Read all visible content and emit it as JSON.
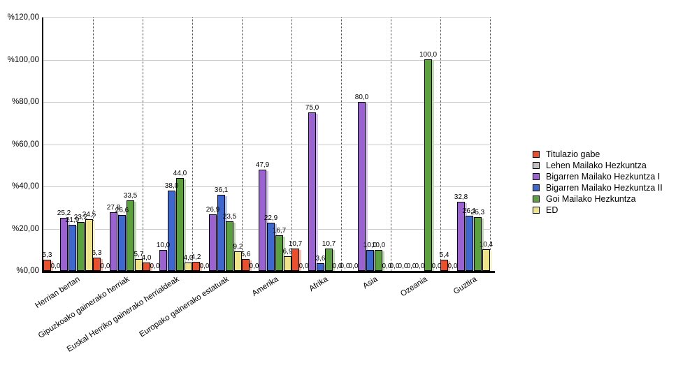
{
  "chart_data": {
    "type": "bar",
    "title": "",
    "xlabel": "",
    "ylabel": "",
    "ylim": [
      0,
      120
    ],
    "grid": "horizontal-solid-gray, vertical-dotted-category-separators",
    "legend_position": "right",
    "decimal_separator": ",",
    "yticks": {
      "values": [
        0,
        20,
        40,
        60,
        80,
        100,
        120
      ],
      "labels": [
        "%0,00",
        "%20,00",
        "%40,00",
        "%60,00",
        "%80,00",
        "%100,00",
        "%120,00"
      ]
    },
    "categories": [
      "Herrian bertan",
      "Gipuzkoako gainerako herriak",
      "Euskal Herriko gainerako herrialdeak",
      "Europako gainerako estatuak",
      "Amerika",
      "Afrika",
      "Asia",
      "Ozeania",
      "Guztira"
    ],
    "series": [
      {
        "name": "Titulazio gabe",
        "color": "#e8502e",
        "values": [
          5.3,
          6.3,
          4.0,
          4.2,
          5.6,
          10.7,
          0.0,
          0.0,
          5.4
        ],
        "labels": [
          "5,3",
          "6,3",
          "4,0",
          "4,2",
          "5,6",
          "10,7",
          "0,0",
          "0,0",
          "5,4"
        ]
      },
      {
        "name": "Lehen Mailako Hezkuntza",
        "color": "#c0c0c0",
        "values": [
          0.0,
          0.0,
          0.0,
          0.0,
          0.0,
          0.0,
          0.0,
          0.0,
          0.0
        ],
        "labels": [
          "0,0",
          "0,0",
          "0,0",
          "0,0",
          "0,0",
          "0,0",
          "0,0",
          "0,0",
          "0,0"
        ]
      },
      {
        "name": "Bigarren Mailako Hezkuntza I",
        "color": "#9a63d0",
        "values": [
          25.2,
          27.8,
          10.0,
          26.9,
          47.9,
          75.0,
          80.0,
          0.0,
          32.8
        ],
        "labels": [
          "25,2",
          "27,8",
          "10,0",
          "26,9",
          "47,9",
          "75,0",
          "80,0",
          "0,0",
          "32,8"
        ]
      },
      {
        "name": "Bigarren Mailako Hezkuntza II",
        "color": "#3f68cf",
        "values": [
          21.9,
          26.6,
          38.0,
          36.1,
          22.9,
          3.6,
          10.0,
          0.0,
          26.1
        ],
        "labels": [
          "21,9",
          "26,6",
          "38,0",
          "36,1",
          "22,9",
          "3,6",
          "10,0",
          "0,0",
          "26,1"
        ]
      },
      {
        "name": "Goi Mailako Hezkuntza",
        "color": "#5da03f",
        "values": [
          23.2,
          33.5,
          44.0,
          23.5,
          16.7,
          10.7,
          10.0,
          100.0,
          25.3
        ],
        "labels": [
          "23,2",
          "33,5",
          "44,0",
          "23,5",
          "16,7",
          "10,7",
          "10,0",
          "100,0",
          "25,3"
        ]
      },
      {
        "name": "ED",
        "color": "#f0e48b",
        "values": [
          24.5,
          5.7,
          4.0,
          9.2,
          6.9,
          0.0,
          0.0,
          0.0,
          10.4
        ],
        "labels": [
          "24,5",
          "5,7",
          "4,0",
          "9,2",
          "6,9",
          "0,0",
          "0,0",
          "0,0",
          "10,4"
        ]
      }
    ]
  }
}
